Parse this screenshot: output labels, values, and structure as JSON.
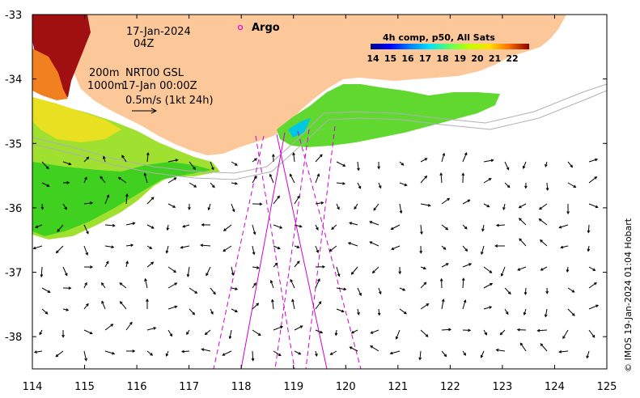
{
  "header": {
    "date": "17-Jan-2024",
    "time": "04Z",
    "depth_1": "200m",
    "depth_2": "1000m",
    "product": "NRT00 GSL",
    "product_time": "17-Jan 00:00Z",
    "scale_label": "0.5m/s (1kt 24h)"
  },
  "legend": {
    "argo_label": "Argo",
    "argo_color": "#e000e0"
  },
  "colorbar": {
    "title": "4h comp, p50, All Sats",
    "ticks": [
      "14",
      "15",
      "16",
      "17",
      "18",
      "19",
      "20",
      "21",
      "22"
    ],
    "colors": [
      "#00007f",
      "#0000ff",
      "#0080ff",
      "#00e0ff",
      "#40ff80",
      "#a0ff20",
      "#ffff00",
      "#ffa000",
      "#ff3000",
      "#7f0000"
    ]
  },
  "axes": {
    "x_ticks": [
      "114",
      "115",
      "116",
      "117",
      "118",
      "119",
      "120",
      "121",
      "122",
      "123",
      "124",
      "125"
    ],
    "y_ticks": [
      "-33",
      "-34",
      "-35",
      "-36",
      "-37",
      "-38"
    ],
    "xlim": [
      114,
      125
    ],
    "ylim": [
      -38.5,
      -33
    ]
  },
  "credit": "© IMOS 19-Jan-2024 01:04 Hobart",
  "colors": {
    "land": "#fcc89a",
    "ocean": "#ffffff",
    "track": "#d000d0"
  }
}
